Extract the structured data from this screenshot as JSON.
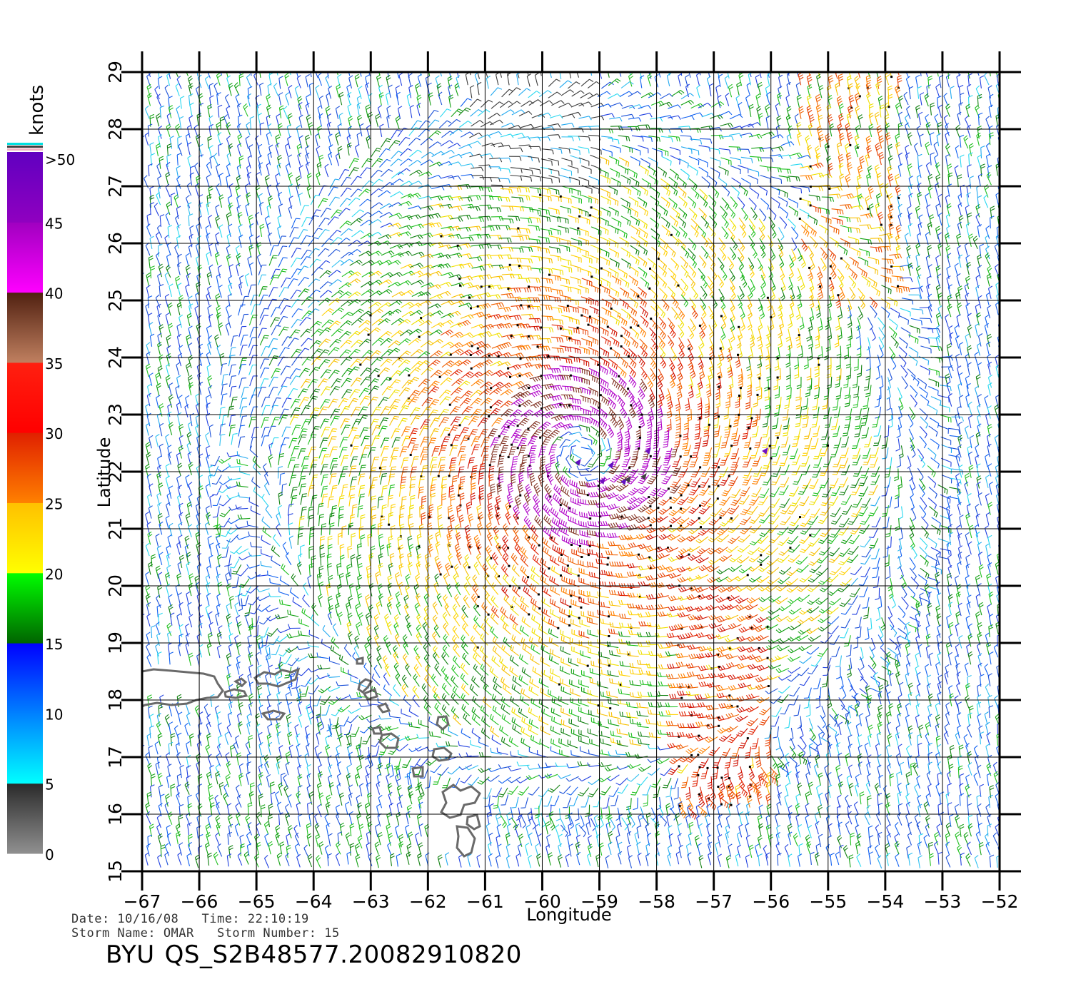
{
  "map": {
    "axis_x_label": "Longitude",
    "axis_y_label": "Latitude",
    "lon_ticks": [
      "−67",
      "−66",
      "−65",
      "−64",
      "−63",
      "−62",
      "−61",
      "−60",
      "−59",
      "−58",
      "−57",
      "−56",
      "−55",
      "−54",
      "−53",
      "−52"
    ],
    "lat_ticks": [
      "15",
      "16",
      "17",
      "18",
      "19",
      "20",
      "21",
      "22",
      "23",
      "24",
      "25",
      "26",
      "27",
      "28",
      "29"
    ],
    "lon_range": [
      -67,
      -52
    ],
    "lat_range": [
      15,
      29
    ],
    "storm_center": {
      "lon": -59.3,
      "lat": 22.3
    },
    "content": "QuikSCAT wind-barb field around a tropical cyclone; island coastlines near Puerto Rico and the Lesser Antilles"
  },
  "colorbar": {
    "unit_label": "knots",
    "tick_labels": [
      "0",
      "5",
      "10",
      "15",
      "20",
      "25",
      "30",
      "35",
      "40",
      "45",
      ">50"
    ],
    "bands": [
      {
        "from": "#909090",
        "to": "#2a2a2a"
      },
      {
        "from": "#00ffff",
        "to": "#0080ff"
      },
      {
        "from": "#0080ff",
        "to": "#0000ff"
      },
      {
        "from": "#006400",
        "to": "#00ff00"
      },
      {
        "from": "#ffff00",
        "to": "#ffc000"
      },
      {
        "from": "#ff8000",
        "to": "#e02000"
      },
      {
        "from": "#ff0000",
        "to": "#ff2010"
      },
      {
        "from": "#c08060",
        "to": "#502010"
      },
      {
        "from": "#ff00ff",
        "to": "#a000c0"
      },
      {
        "from": "#9000c0",
        "to": "#6000c0"
      }
    ]
  },
  "footer": {
    "date_line": "Date: 10/16/08   Time: 22:10:19",
    "storm_line": "Storm Name: OMAR   Storm Number: 15",
    "agency": "BYU",
    "file_id": "QS_S2B48577.20082910820"
  }
}
